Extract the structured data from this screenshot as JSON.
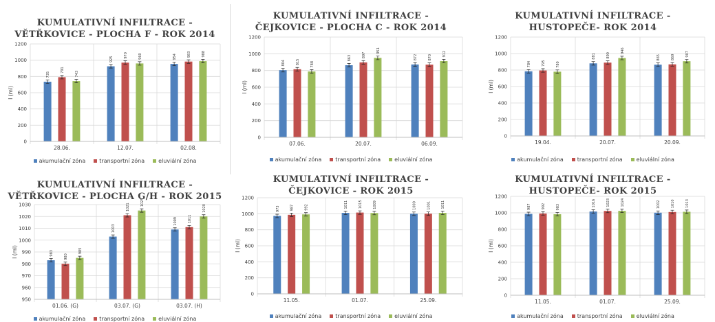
{
  "legend_labels": [
    "akumulační zóna",
    "transportní zóna",
    "eluviální zóna"
  ],
  "colors": {
    "series": [
      "#4f81bd",
      "#c0504d",
      "#9bbb59"
    ],
    "grid": "#d9d9d9",
    "text": "#404040"
  },
  "chart_data": [
    {
      "type": "bar",
      "title": "KUMULATIVNÍ INFILTRACE -",
      "subtitle": "VĚTŘKOVICE - PLOCHA F - ROK 2014",
      "ylabel": "I (ml)",
      "ylim": [
        0,
        1200
      ],
      "yticks": [
        0,
        200,
        400,
        600,
        800,
        1000,
        1200
      ],
      "ytick_labels": [
        "0",
        "200",
        "400",
        "600",
        "800",
        "1000",
        "1200"
      ],
      "grid": true,
      "legend": "bottom",
      "categories": [
        "28.06.",
        "12.07.",
        "02.08."
      ],
      "series": [
        {
          "name": "akumulační zóna",
          "values": [
            735,
            925,
            954
          ],
          "labels": [
            "735",
            "925",
            "954"
          ]
        },
        {
          "name": "transportní zóna",
          "values": [
            791,
            970,
            983
          ],
          "labels": [
            "791",
            "970",
            "983"
          ]
        },
        {
          "name": "eluviální zóna",
          "values": [
            743,
            960,
            988
          ],
          "labels": [
            "743",
            "960",
            "988"
          ]
        }
      ]
    },
    {
      "type": "bar",
      "title": "KUMULATIVNÍ INFILTRACE -",
      "subtitle": "ČEJKOVICE - PLOCHA C - ROK 2014",
      "ylabel": "I (ml)",
      "ylim": [
        0,
        1200
      ],
      "yticks": [
        0,
        200,
        400,
        600,
        800,
        1000,
        1200
      ],
      "ytick_labels": [
        "0",
        "200",
        "400",
        "600",
        "800",
        "1000",
        "1200"
      ],
      "grid": true,
      "legend": "bottom",
      "categories": [
        "07.06.",
        "20.07.",
        "06.09."
      ],
      "series": [
        {
          "name": "akumulační zóna",
          "values": [
            804,
            863,
            872
          ],
          "labels": [
            "804",
            "863",
            "872"
          ]
        },
        {
          "name": "transportní zóna",
          "values": [
            815,
            897,
            870
          ],
          "labels": [
            "815",
            "897",
            "870"
          ]
        },
        {
          "name": "eluviální zóna",
          "values": [
            788,
            951,
            912
          ],
          "labels": [
            "788",
            "951",
            "912"
          ]
        }
      ]
    },
    {
      "type": "bar",
      "title": "KUMULATIVNÍ INFILTRACE -",
      "subtitle": "HUSTOPEČE- ROK 2014",
      "ylabel": "I (ml)",
      "ylim": [
        0,
        1200
      ],
      "yticks": [
        0,
        200,
        400,
        600,
        800,
        1000,
        1200
      ],
      "ytick_labels": [
        "0",
        "200",
        "400",
        "600",
        "800",
        "1000",
        "1200"
      ],
      "grid": true,
      "legend": "bottom",
      "categories": [
        "19.04.",
        "20.07.",
        "20.09."
      ],
      "series": [
        {
          "name": "akumulační zóna",
          "values": [
            784,
            881,
            865
          ],
          "labels": [
            "784",
            "881",
            "865"
          ]
        },
        {
          "name": "transportní zóna",
          "values": [
            795,
            890,
            869
          ],
          "labels": [
            "795",
            "890",
            "869"
          ]
        },
        {
          "name": "eluviální zóna",
          "values": [
            780,
            946,
            907
          ],
          "labels": [
            "780",
            "946",
            "907"
          ]
        }
      ]
    },
    {
      "type": "bar",
      "title": "KUMULATIVNÍ INFILTRACE -",
      "subtitle": "VĚTŘKOVICE - PLOCHA G/H - ROK 2015",
      "ylabel": "I (ml)",
      "ylim": [
        950,
        1030
      ],
      "yticks": [
        950,
        960,
        970,
        980,
        990,
        1000,
        1010,
        1020,
        1030
      ],
      "ytick_labels": [
        "950",
        "960",
        "970",
        "980",
        "990",
        "1000",
        "1010",
        "1020",
        "1030"
      ],
      "grid": true,
      "legend": "bottom",
      "categories": [
        "01.06. (G)",
        "03.07. (G)",
        "03.07. (H)"
      ],
      "series": [
        {
          "name": "akumulační zóna",
          "values": [
            983,
            1003,
            1009
          ],
          "labels": [
            "983",
            "1003",
            "1009"
          ]
        },
        {
          "name": "transportní zóna",
          "values": [
            980,
            1021,
            1011
          ],
          "labels": [
            "980",
            "1021",
            "1011"
          ]
        },
        {
          "name": "eluviální zóna",
          "values": [
            985,
            1025,
            1020
          ],
          "labels": [
            "985",
            "1025",
            "1020"
          ]
        }
      ]
    },
    {
      "type": "bar",
      "title": "KUMULATIVNÍ INFILTRACE -",
      "subtitle": "ČEJKOVICE - ROK 2015",
      "ylabel": "I (ml)",
      "ylim": [
        0,
        1200
      ],
      "yticks": [
        0,
        200,
        400,
        600,
        800,
        1000,
        1200
      ],
      "ytick_labels": [
        "0",
        "200",
        "400",
        "600",
        "800",
        "1000",
        "1200"
      ],
      "grid": true,
      "legend": "bottom",
      "categories": [
        "11.05.",
        "01.07.",
        "25.09."
      ],
      "series": [
        {
          "name": "akumulační zóna",
          "values": [
            973,
            1011,
            1000
          ],
          "labels": [
            "973",
            "1011",
            "1000"
          ]
        },
        {
          "name": "transportní zóna",
          "values": [
            987,
            1015,
            1001
          ],
          "labels": [
            "987",
            "1015",
            "1001"
          ]
        },
        {
          "name": "eluviální zóna",
          "values": [
            992,
            1009,
            1011
          ],
          "labels": [
            "992",
            "1009",
            "1011"
          ]
        }
      ]
    },
    {
      "type": "bar",
      "title": "KUMULATIVNÍ INFILTRACE -",
      "subtitle": "HUSTOPEČE- ROK 2015",
      "ylabel": "I (ml)",
      "ylim": [
        0,
        1200
      ],
      "yticks": [
        0,
        200,
        400,
        600,
        800,
        1000,
        1200
      ],
      "ytick_labels": [
        "0",
        "200",
        "400",
        "600",
        "800",
        "1000",
        "1200"
      ],
      "grid": true,
      "legend": "bottom",
      "categories": [
        "11.05.",
        "01.07.",
        "25.09."
      ],
      "series": [
        {
          "name": "akumulační zóna",
          "values": [
            987,
            1016,
            1002
          ],
          "labels": [
            "987",
            "1016",
            "1002"
          ]
        },
        {
          "name": "transportní zóna",
          "values": [
            992,
            1023,
            1010
          ],
          "labels": [
            "992",
            "1023",
            "1010"
          ]
        },
        {
          "name": "eluviální zóna",
          "values": [
            983,
            1024,
            1013
          ],
          "labels": [
            "983",
            "1024",
            "1013"
          ]
        }
      ]
    }
  ]
}
